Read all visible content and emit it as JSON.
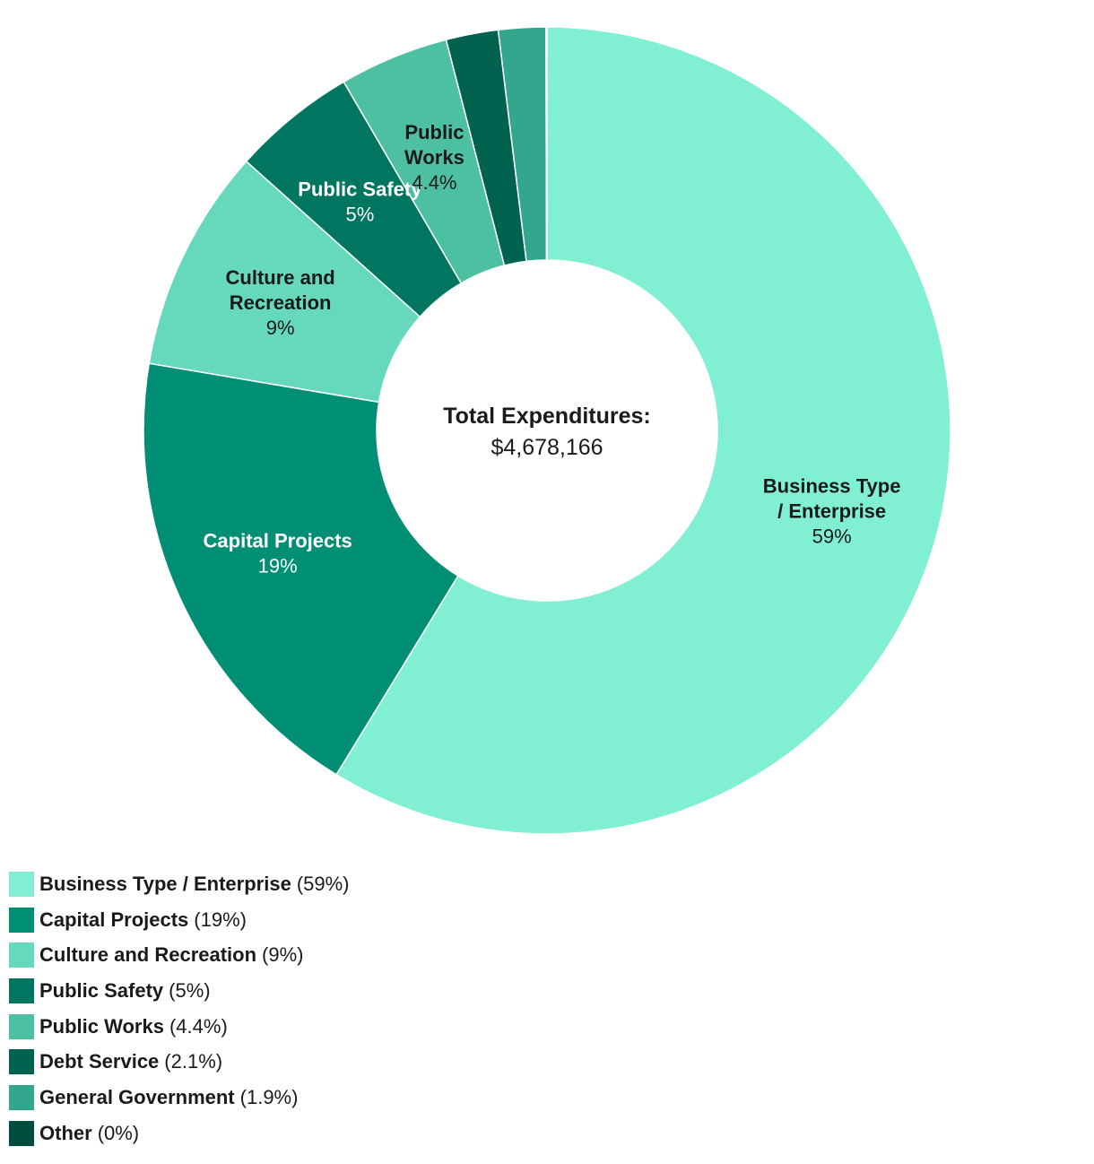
{
  "chart_data": {
    "type": "pie",
    "variant": "donut",
    "center_label": {
      "title": "Total Expenditures:",
      "value": "$4,678,166"
    },
    "slices": [
      {
        "label": "Business Type / Enterprise",
        "slice_label_lines": [
          "Business Type",
          "/ Enterprise"
        ],
        "value": 59,
        "display": "59%",
        "color": "#80efd2",
        "label_color": "#1a1a1a",
        "show_label": true
      },
      {
        "label": "Capital Projects",
        "slice_label_lines": [
          "Capital Projects"
        ],
        "value": 19,
        "display": "19%",
        "color": "#008f74",
        "label_color": "#ffffff",
        "show_label": true
      },
      {
        "label": "Culture and Recreation",
        "slice_label_lines": [
          "Culture and",
          "Recreation"
        ],
        "value": 9,
        "display": "9%",
        "color": "#66d8bb",
        "label_color": "#1a1a1a",
        "show_label": true
      },
      {
        "label": "Public Safety",
        "slice_label_lines": [
          "Public Safety"
        ],
        "value": 5,
        "display": "5%",
        "color": "#007560",
        "label_color": "#ffffff",
        "show_label": true
      },
      {
        "label": "Public Works",
        "slice_label_lines": [
          "Public",
          "Works"
        ],
        "value": 4.4,
        "display": "4.4%",
        "color": "#4dc0a2",
        "label_color": "#1a1a1a",
        "show_label": true
      },
      {
        "label": "Debt Service",
        "slice_label_lines": [
          "Debt Service"
        ],
        "value": 2.1,
        "display": "2.1%",
        "color": "#00624f",
        "label_color": "#ffffff",
        "show_label": false
      },
      {
        "label": "General Government",
        "slice_label_lines": [
          "General Government"
        ],
        "value": 1.9,
        "display": "1.9%",
        "color": "#33a78d",
        "label_color": "#ffffff",
        "show_label": false
      },
      {
        "label": "Other",
        "slice_label_lines": [
          "Other"
        ],
        "value": 0.04,
        "display": "0%",
        "color": "#004d3e",
        "label_color": "#ffffff",
        "show_label": false
      }
    ],
    "legend": {
      "placement": "bottom-left",
      "items": [
        {
          "label": "Business Type / Enterprise",
          "pct": "(59%)",
          "color": "#80efd2"
        },
        {
          "label": "Capital Projects",
          "pct": "(19%)",
          "color": "#008f74"
        },
        {
          "label": "Culture and Recreation",
          "pct": "(9%)",
          "color": "#66d8bb"
        },
        {
          "label": "Public Safety",
          "pct": "(5%)",
          "color": "#007560"
        },
        {
          "label": "Public Works",
          "pct": "(4.4%)",
          "color": "#4dc0a2"
        },
        {
          "label": "Debt Service",
          "pct": "(2.1%)",
          "color": "#00624f"
        },
        {
          "label": "General Government",
          "pct": "(1.9%)",
          "color": "#33a78d"
        },
        {
          "label": "Other",
          "pct": "(0%)",
          "color": "#004d3e"
        }
      ]
    }
  }
}
